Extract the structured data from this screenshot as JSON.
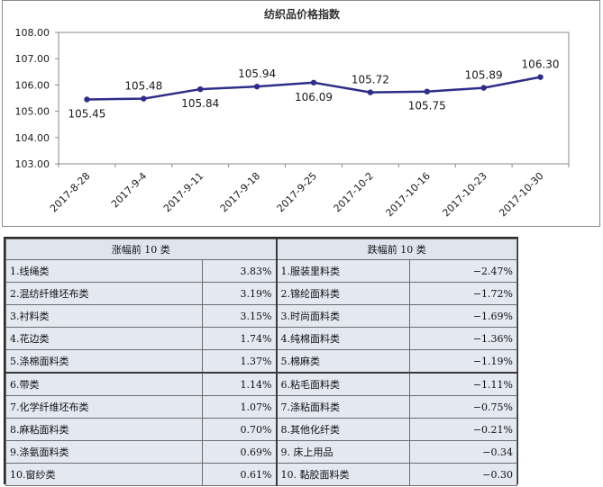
{
  "chart_data": {
    "type": "line",
    "title": "纺织品价格指数",
    "categories": [
      "2017-8-28",
      "2017-9-4",
      "2017-9-11",
      "2017-9-18",
      "2017-9-25",
      "2017-10-2",
      "2017-10-16",
      "2017-10-23",
      "2017-10-30"
    ],
    "values": [
      105.45,
      105.48,
      105.84,
      105.94,
      106.09,
      105.72,
      105.75,
      105.89,
      106.3
    ],
    "data_labels": [
      "105.45",
      "105.48",
      "105.84",
      "105.94",
      "106.09",
      "105.72",
      "105.75",
      "105.89",
      "106.30"
    ],
    "label_position": [
      "below",
      "above",
      "below",
      "above",
      "below",
      "above",
      "below",
      "above",
      "above"
    ],
    "ylim": [
      103.0,
      108.0
    ],
    "yticks": [
      "103.00",
      "104.00",
      "105.00",
      "106.00",
      "107.00",
      "108.00"
    ],
    "grid": false,
    "legend": "none",
    "xlabel": "",
    "ylabel": "",
    "colors": {
      "line": "#2e2e8a",
      "marker": "#2e2e8a",
      "text": "#1a1a1a",
      "axis": "#8a8a8a"
    }
  },
  "table": {
    "header_up": "涨幅前 10 类",
    "header_down": "跌幅前 10 类",
    "rows": [
      {
        "up_name": "1.线绳类",
        "up_value": "3.83%",
        "down_name": "1.服装里料类",
        "down_value": "−2.47%"
      },
      {
        "up_name": "2.混纺纤维坯布类",
        "up_value": "3.19%",
        "down_name": "2.锦纶面料类",
        "down_value": "−1.72%"
      },
      {
        "up_name": "3.衬料类",
        "up_value": "3.15%",
        "down_name": "3.时尚面料类",
        "down_value": "−1.69%"
      },
      {
        "up_name": "4.花边类",
        "up_value": "1.74%",
        "down_name": "4.纯棉面料类",
        "down_value": "−1.36%"
      },
      {
        "up_name": "5.涤棉面料类",
        "up_value": "1.37%",
        "down_name": "5.棉麻类",
        "down_value": "−1.19%"
      },
      {
        "up_name": "6.带类",
        "up_value": "1.14%",
        "down_name": "6.粘毛面料类",
        "down_value": "−1.11%"
      },
      {
        "up_name": "7.化学纤维坯布类",
        "up_value": "1.07%",
        "down_name": "7.涤粘面料类",
        "down_value": "−0.75%"
      },
      {
        "up_name": "8.麻粘面料类",
        "up_value": "0.70%",
        "down_name": "8.其他化纤类",
        "down_value": "−0.21%"
      },
      {
        "up_name": "9.涤氨面料类",
        "up_value": "0.69%",
        "down_name": "9.  床上用品",
        "down_value": "−0.34"
      },
      {
        "up_name": "10.窗纱类",
        "up_value": "0.61%",
        "down_name": "10.  黏胶面料类",
        "down_value": "−0.30"
      }
    ]
  }
}
